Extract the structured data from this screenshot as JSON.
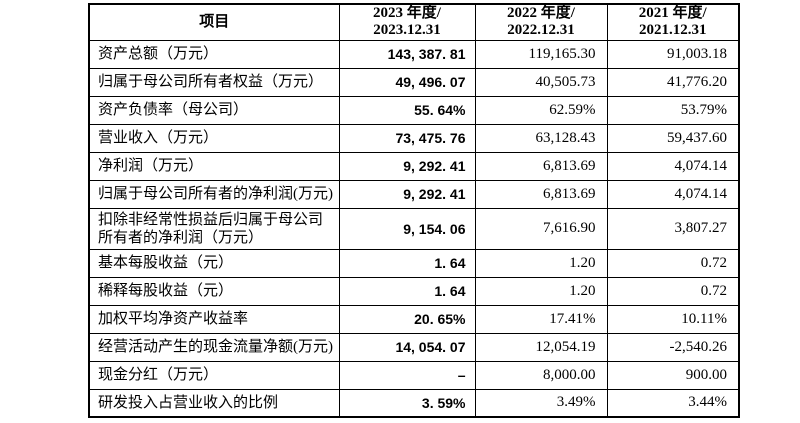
{
  "page": {
    "background": "#ffffff",
    "text_color": "#000000",
    "border_color": "#000000"
  },
  "table": {
    "header": {
      "item_label": "项目",
      "columns": [
        {
          "line1": "2023 年度/",
          "line2": "2023.12.31"
        },
        {
          "line1": "2022 年度/",
          "line2": "2022.12.31"
        },
        {
          "line1": "2021 年度/",
          "line2": "2021.12.31"
        }
      ]
    },
    "rows": [
      {
        "label": "资产总额（万元）",
        "y2023": "143, 387. 81",
        "y2022": "119,165.30",
        "y2021": "91,003.18"
      },
      {
        "label": "归属于母公司所有者权益（万元）",
        "y2023": "49, 496. 07",
        "y2022": "40,505.73",
        "y2021": "41,776.20"
      },
      {
        "label": "资产负债率（母公司）",
        "y2023": "55. 64%",
        "y2022": "62.59%",
        "y2021": "53.79%"
      },
      {
        "label": "营业收入（万元）",
        "y2023": "73, 475. 76",
        "y2022": "63,128.43",
        "y2021": "59,437.60"
      },
      {
        "label": "净利润（万元）",
        "y2023": "9, 292. 41",
        "y2022": "6,813.69",
        "y2021": "4,074.14"
      },
      {
        "label": "归属于母公司所有者的净利润(万元)",
        "y2023": "9, 292. 41",
        "y2022": "6,813.69",
        "y2021": "4,074.14"
      },
      {
        "label": "扣除非经常性损益后归属于母公司所有者的净利润（万元）",
        "y2023": "9, 154. 06",
        "y2022": "7,616.90",
        "y2021": "3,807.27"
      },
      {
        "label": "基本每股收益（元）",
        "y2023": "1. 64",
        "y2022": "1.20",
        "y2021": "0.72"
      },
      {
        "label": "稀释每股收益（元）",
        "y2023": "1. 64",
        "y2022": "1.20",
        "y2021": "0.72"
      },
      {
        "label": "加权平均净资产收益率",
        "y2023": "20. 65%",
        "y2022": "17.41%",
        "y2021": "10.11%"
      },
      {
        "label": "经营活动产生的现金流量净额(万元)",
        "y2023": "14, 054. 07",
        "y2022": "12,054.19",
        "y2021": "-2,540.26"
      },
      {
        "label": "现金分红（万元）",
        "y2023": "–",
        "y2022": "8,000.00",
        "y2021": "900.00"
      },
      {
        "label": "研发投入占营业收入的比例",
        "y2023": "3. 59%",
        "y2022": "3.49%",
        "y2021": "3.44%"
      }
    ]
  }
}
